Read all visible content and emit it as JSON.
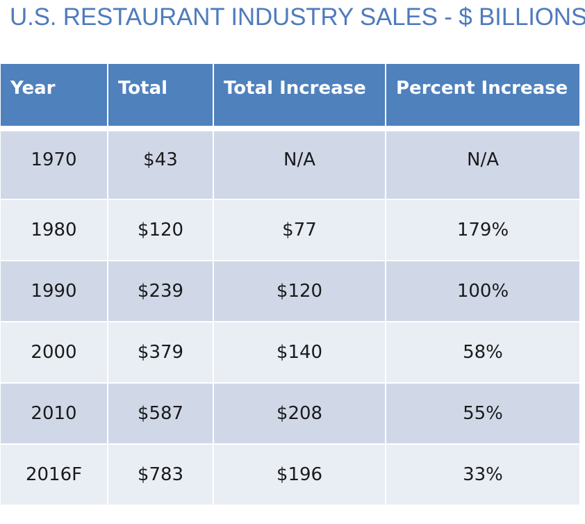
{
  "chart_data": {
    "type": "table",
    "title": "U.S. RESTAURANT INDUSTRY SALES - $ BILLIONS",
    "columns": [
      "Year",
      "Total",
      "Total Increase",
      "Percent Increase"
    ],
    "rows": [
      [
        "1970",
        "$43",
        "N/A",
        "N/A"
      ],
      [
        "1980",
        "$120",
        "$77",
        "179%"
      ],
      [
        "1990",
        "$239",
        "$120",
        "100%"
      ],
      [
        "2000",
        "$379",
        "$140",
        "58%"
      ],
      [
        "2010",
        "$587",
        "$208",
        "55%"
      ],
      [
        "2016F",
        "$783",
        "$196",
        "33%"
      ]
    ]
  },
  "colors": {
    "header_bg": "#4F81BD",
    "title_text": "#4F7BBD",
    "row_band_dark": "#D0D8E8",
    "row_band_light": "#E9EDF4"
  }
}
